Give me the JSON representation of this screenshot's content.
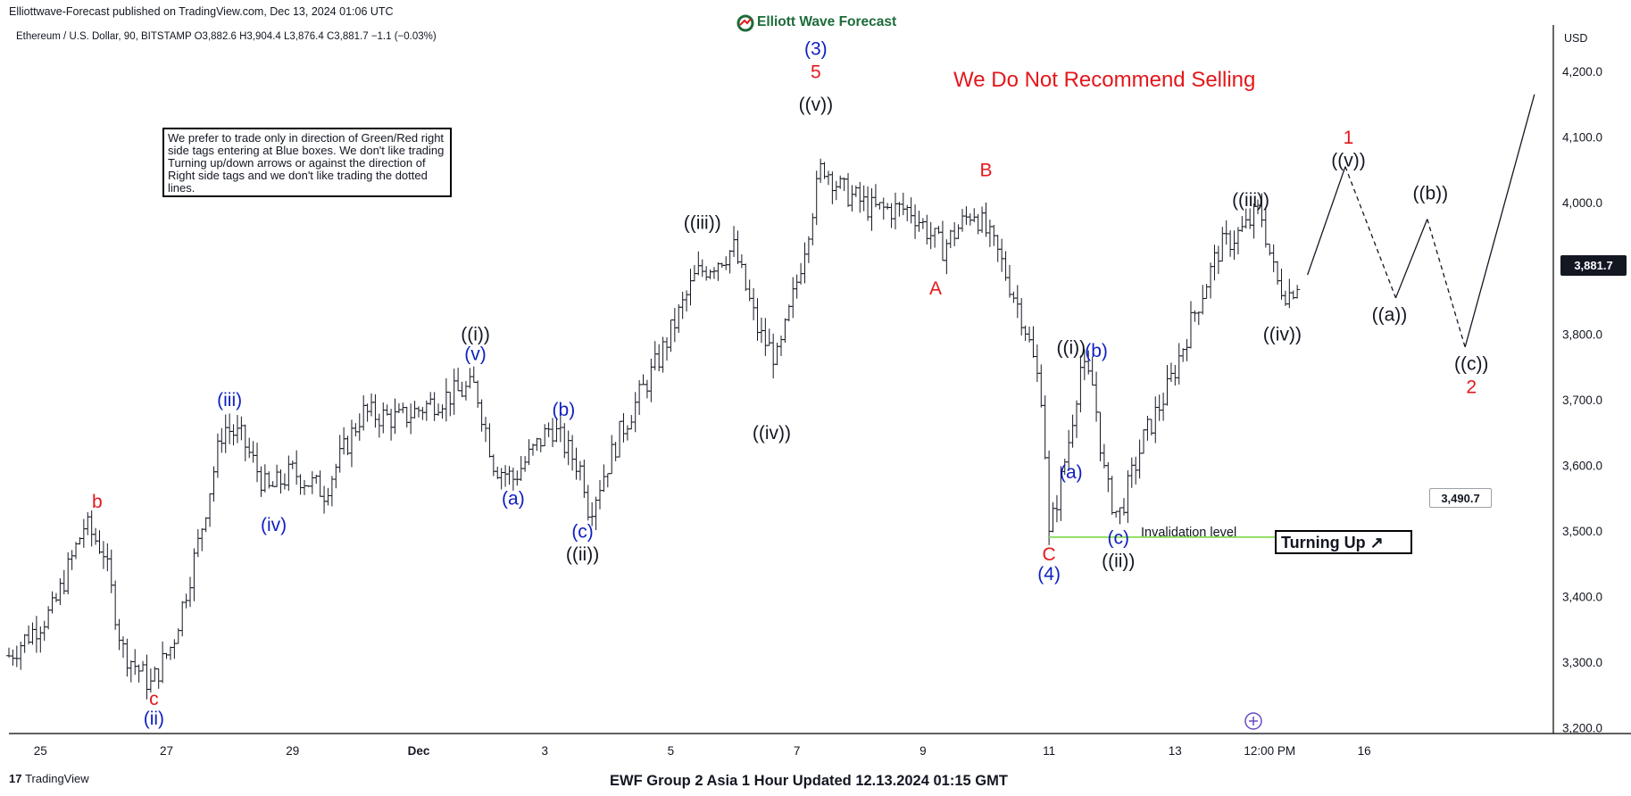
{
  "header": {
    "published": "Elliottwave-Forecast published on TradingView.com, Dec 13, 2024 01:06 UTC",
    "symbol_line": "Ethereum / U.S. Dollar, 90, BITSTAMP  O3,882.6  H3,904.4  L3,876.4  C3,881.7  −1.1 (−0.03%)",
    "brand": "Elliott Wave Forecast",
    "currency": "USD"
  },
  "warning": "We Do Not Recommend Selling",
  "note": "We prefer to trade only in direction of Green/Red right side tags entering at Blue boxes. We don't like trading Turning up/down arrows or against the direction of Right side tags and we don't like trading the dotted lines.",
  "invalidation_label": "Invalidation level",
  "turning_up": "Turning Up ↗",
  "last_price": "3,881.7",
  "level_tag": "3,490.7",
  "footer": {
    "tv_logo": "TradingView",
    "title": "EWF Group 2 Asia 1 Hour Updated 12.13.2024 01:15 GMT"
  },
  "colors": {
    "red": "#e3171b",
    "blue": "#1020c0",
    "black": "#131722",
    "green": "#8fde5f"
  },
  "chart_data": {
    "type": "bar",
    "ylim": [
      3150,
      4250
    ],
    "y_ticks": [
      3200,
      3300,
      3400,
      3500,
      3600,
      3700,
      3800,
      3900,
      4000,
      4100,
      4200
    ],
    "y_tick_labels": [
      "3,200.0",
      "3,300.0",
      "3,400.0",
      "3,500.0",
      "3,600.0",
      "3,700.0",
      "3,800.0",
      "3,900.0",
      "4,000.0",
      "4,100.0",
      "4,200.0"
    ],
    "x_tick_labels": [
      "25",
      "27",
      "29",
      "Dec",
      "3",
      "5",
      "7",
      "9",
      "11",
      "13",
      "12:00 PM",
      "16"
    ],
    "xlim_days": [
      -0.5,
      21.7
    ],
    "x_tick_days": [
      0,
      2,
      4,
      6,
      8,
      10,
      12,
      14,
      16,
      18,
      19.5,
      21
    ],
    "price_path": [
      {
        "d": -0.5,
        "p": 3310
      },
      {
        "d": 0.2,
        "p": 3380
      },
      {
        "d": 0.7,
        "p": 3510
      },
      {
        "d": 1.0,
        "p": 3470
      },
      {
        "d": 1.3,
        "p": 3320
      },
      {
        "d": 1.75,
        "p": 3265
      },
      {
        "d": 2.1,
        "p": 3330
      },
      {
        "d": 2.5,
        "p": 3480
      },
      {
        "d": 2.9,
        "p": 3660
      },
      {
        "d": 3.2,
        "p": 3640
      },
      {
        "d": 3.6,
        "p": 3560
      },
      {
        "d": 4.0,
        "p": 3590
      },
      {
        "d": 4.5,
        "p": 3560
      },
      {
        "d": 5.1,
        "p": 3680
      },
      {
        "d": 5.7,
        "p": 3670
      },
      {
        "d": 6.3,
        "p": 3700
      },
      {
        "d": 6.9,
        "p": 3720
      },
      {
        "d": 7.2,
        "p": 3600
      },
      {
        "d": 7.5,
        "p": 3580
      },
      {
        "d": 8.1,
        "p": 3660
      },
      {
        "d": 8.6,
        "p": 3590
      },
      {
        "d": 8.7,
        "p": 3530
      },
      {
        "d": 9.2,
        "p": 3650
      },
      {
        "d": 9.8,
        "p": 3760
      },
      {
        "d": 10.4,
        "p": 3890
      },
      {
        "d": 11.0,
        "p": 3930
      },
      {
        "d": 11.4,
        "p": 3800
      },
      {
        "d": 11.7,
        "p": 3760
      },
      {
        "d": 12.0,
        "p": 3880
      },
      {
        "d": 12.4,
        "p": 4060
      },
      {
        "d": 12.7,
        "p": 4020
      },
      {
        "d": 13.2,
        "p": 3990
      },
      {
        "d": 13.8,
        "p": 3990
      },
      {
        "d": 14.3,
        "p": 3930
      },
      {
        "d": 14.8,
        "p": 3990
      },
      {
        "d": 15.2,
        "p": 3920
      },
      {
        "d": 15.6,
        "p": 3820
      },
      {
        "d": 15.9,
        "p": 3700
      },
      {
        "d": 16.0,
        "p": 3490
      },
      {
        "d": 16.3,
        "p": 3630
      },
      {
        "d": 16.5,
        "p": 3750
      },
      {
        "d": 16.7,
        "p": 3720
      },
      {
        "d": 16.9,
        "p": 3570
      },
      {
        "d": 17.1,
        "p": 3520
      },
      {
        "d": 17.5,
        "p": 3640
      },
      {
        "d": 17.9,
        "p": 3720
      },
      {
        "d": 18.3,
        "p": 3830
      },
      {
        "d": 18.7,
        "p": 3930
      },
      {
        "d": 19.1,
        "p": 3960
      },
      {
        "d": 19.35,
        "p": 3990
      },
      {
        "d": 19.6,
        "p": 3880
      },
      {
        "d": 19.8,
        "p": 3860
      },
      {
        "d": 19.95,
        "p": 3882
      }
    ],
    "invalidation_level": 3490.7,
    "invalidation_range_days": [
      16.0,
      21.6
    ],
    "projection": [
      {
        "d": 20.1,
        "p": 3890,
        "dash": false
      },
      {
        "d": 20.7,
        "p": 4055,
        "dash": false
      },
      {
        "d": 21.5,
        "p": 3855,
        "dash": true
      },
      {
        "d": 22.0,
        "p": 3975,
        "dash": false
      },
      {
        "d": 22.6,
        "p": 3780,
        "dash": true
      },
      {
        "d": 23.7,
        "p": 4165,
        "dash": false
      }
    ],
    "labels": [
      {
        "t": "b",
        "d": 0.9,
        "p": 3535,
        "c": "red"
      },
      {
        "t": "c",
        "d": 1.8,
        "p": 3235,
        "c": "red"
      },
      {
        "t": "(ii)",
        "d": 1.8,
        "p": 3205,
        "c": "blue"
      },
      {
        "t": "(iii)",
        "d": 3.0,
        "p": 3690,
        "c": "blue"
      },
      {
        "t": "(iv)",
        "d": 3.7,
        "p": 3500,
        "c": "blue"
      },
      {
        "t": "((i))",
        "d": 6.9,
        "p": 3790,
        "c": "black"
      },
      {
        "t": "(v)",
        "d": 6.9,
        "p": 3760,
        "c": "blue"
      },
      {
        "t": "(a)",
        "d": 7.5,
        "p": 3540,
        "c": "blue"
      },
      {
        "t": "(b)",
        "d": 8.3,
        "p": 3675,
        "c": "blue"
      },
      {
        "t": "(c)",
        "d": 8.6,
        "p": 3490,
        "c": "blue"
      },
      {
        "t": "((ii))",
        "d": 8.6,
        "p": 3455,
        "c": "black"
      },
      {
        "t": "((iii))",
        "d": 10.5,
        "p": 3960,
        "c": "black"
      },
      {
        "t": "((iv))",
        "d": 11.6,
        "p": 3640,
        "c": "black"
      },
      {
        "t": "(3)",
        "d": 12.3,
        "p": 4225,
        "c": "blue"
      },
      {
        "t": "5",
        "d": 12.3,
        "p": 4190,
        "c": "red"
      },
      {
        "t": "((v))",
        "d": 12.3,
        "p": 4140,
        "c": "black"
      },
      {
        "t": "A",
        "d": 14.2,
        "p": 3860,
        "c": "red"
      },
      {
        "t": "B",
        "d": 15.0,
        "p": 4040,
        "c": "red"
      },
      {
        "t": "C",
        "d": 16.0,
        "p": 3455,
        "c": "red"
      },
      {
        "t": "(4)",
        "d": 16.0,
        "p": 3425,
        "c": "blue"
      },
      {
        "t": "((i))",
        "d": 16.35,
        "p": 3770,
        "c": "black"
      },
      {
        "t": "(b)",
        "d": 16.75,
        "p": 3765,
        "c": "blue"
      },
      {
        "t": "(a)",
        "d": 16.35,
        "p": 3580,
        "c": "blue"
      },
      {
        "t": "(c)",
        "d": 17.1,
        "p": 3480,
        "c": "blue"
      },
      {
        "t": "((ii))",
        "d": 17.1,
        "p": 3445,
        "c": "black"
      },
      {
        "t": "((iii))",
        "d": 19.2,
        "p": 3995,
        "c": "black"
      },
      {
        "t": "((iv))",
        "d": 19.7,
        "p": 3790,
        "c": "black"
      },
      {
        "t": "1",
        "d": 20.75,
        "p": 4090,
        "c": "red"
      },
      {
        "t": "((v))",
        "d": 20.75,
        "p": 4055,
        "c": "black"
      },
      {
        "t": "((a))",
        "d": 21.4,
        "p": 3820,
        "c": "black"
      },
      {
        "t": "((b))",
        "d": 22.05,
        "p": 4005,
        "c": "black"
      },
      {
        "t": "((c))",
        "d": 22.7,
        "p": 3745,
        "c": "black"
      },
      {
        "t": "2",
        "d": 22.7,
        "p": 3710,
        "c": "red"
      }
    ]
  }
}
